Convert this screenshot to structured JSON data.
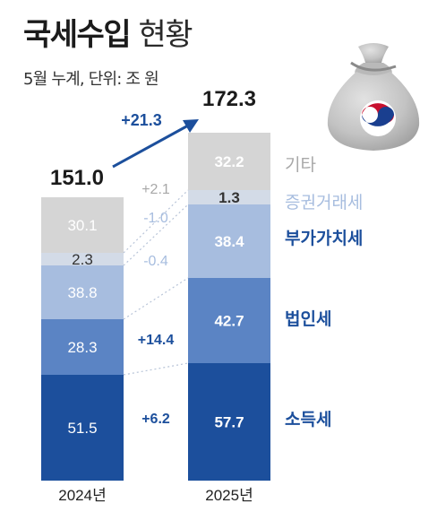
{
  "header": {
    "title_bold": "국세수입",
    "title_light": "현황",
    "subtitle": "5월 누계, 단위: 조 원"
  },
  "icon": "money-bag-with-korean-emblem-icon",
  "chart_data": {
    "type": "bar",
    "stacked": true,
    "categories": [
      "2024년",
      "2025년"
    ],
    "totals": [
      "151.0",
      "172.3"
    ],
    "total_change": "+21.3",
    "series": [
      {
        "name": "소득세",
        "values": [
          51.5,
          57.7
        ],
        "labels": [
          "51.5",
          "57.7"
        ],
        "change": "+6.2",
        "color": "#1c4f9c"
      },
      {
        "name": "법인세",
        "values": [
          28.3,
          42.7
        ],
        "labels": [
          "28.3",
          "42.7"
        ],
        "change": "+14.4",
        "color": "#5b84c4"
      },
      {
        "name": "부가가치세",
        "values": [
          38.8,
          38.4
        ],
        "labels": [
          "38.8",
          "38.4"
        ],
        "change": "-0.4",
        "color": "#a7bddf"
      },
      {
        "name": "증권거래세",
        "values": [
          2.3,
          1.3
        ],
        "labels": [
          "2.3",
          "1.3"
        ],
        "change": "-1.0",
        "color": "#d3dbe7"
      },
      {
        "name": "기타",
        "values": [
          30.1,
          32.2
        ],
        "labels": [
          "30.1",
          "32.2"
        ],
        "change": "+2.1",
        "color": "#d5d5d5"
      }
    ],
    "colors": {
      "legend_dark": "#1c4f9c",
      "legend_light": "#a7bddf",
      "legend_gray": "#a8a8a8",
      "change_text": "#1c4f9c",
      "change_text_light": "#a7bddf",
      "change_text_gray": "#a8a8a8"
    },
    "legend": "right"
  }
}
